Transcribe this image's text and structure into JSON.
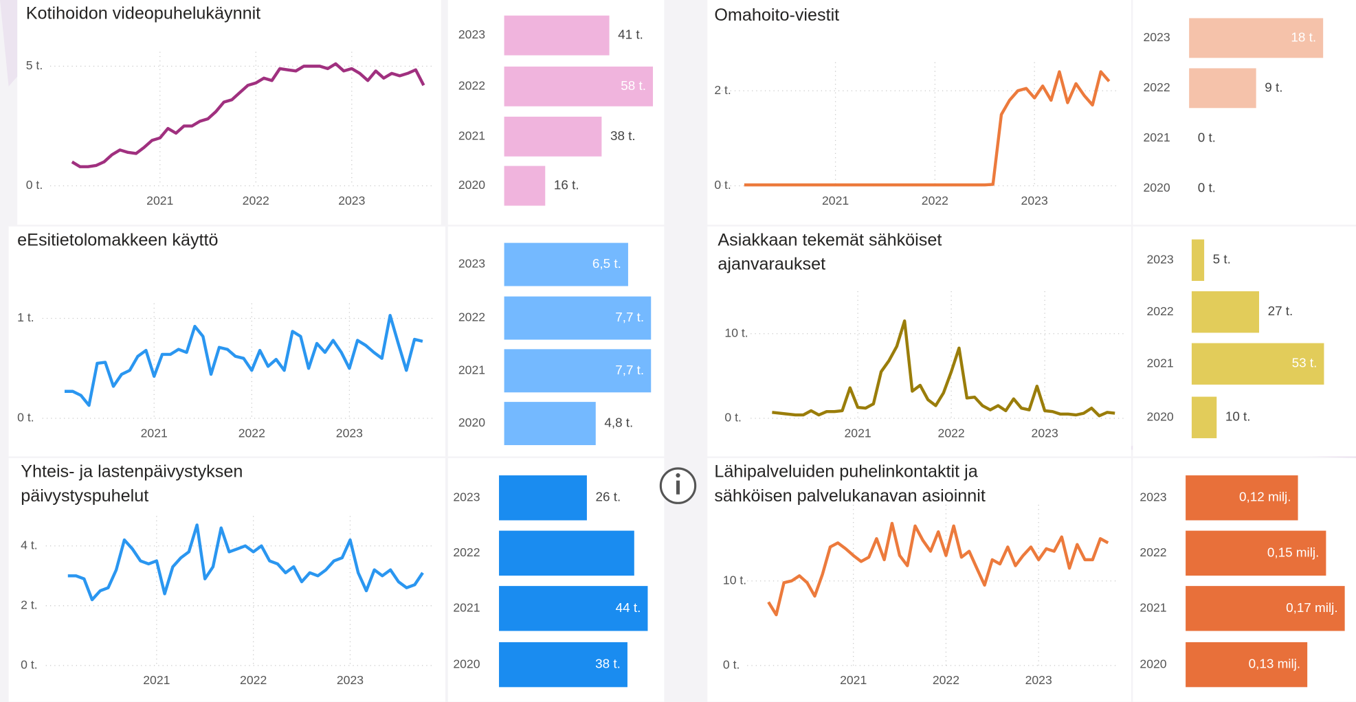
{
  "chart_data": [
    {
      "type": "line",
      "title": "Kotihoidon videopuhelukäynnit",
      "color": "#a0307f",
      "grid": true,
      "x": [
        2020.083,
        2020.167,
        2020.25,
        2020.333,
        2020.417,
        2020.5,
        2020.583,
        2020.667,
        2020.75,
        2020.833,
        2020.917,
        2021,
        2021.083,
        2021.167,
        2021.25,
        2021.333,
        2021.417,
        2021.5,
        2021.583,
        2021.667,
        2021.75,
        2021.833,
        2021.917,
        2022,
        2022.083,
        2022.167,
        2022.25,
        2022.333,
        2022.417,
        2022.5,
        2022.583,
        2022.667,
        2022.75,
        2022.833,
        2022.917,
        2023,
        2023.083,
        2023.167,
        2023.25,
        2023.333,
        2023.417,
        2023.5,
        2023.583,
        2023.667,
        2023.75
      ],
      "values": [
        1.0,
        0.8,
        0.8,
        0.85,
        1.0,
        1.3,
        1.5,
        1.4,
        1.35,
        1.6,
        1.9,
        2.0,
        2.4,
        2.2,
        2.5,
        2.5,
        2.7,
        2.8,
        3.1,
        3.5,
        3.6,
        3.9,
        4.2,
        4.3,
        4.5,
        4.4,
        4.9,
        4.85,
        4.8,
        5.0,
        5.0,
        5.0,
        4.9,
        5.1,
        4.8,
        4.9,
        4.7,
        4.4,
        4.8,
        4.5,
        4.7,
        4.6,
        4.7,
        4.85,
        4.2
      ],
      "xlim": [
        2019.9,
        2023.85
      ],
      "ylim": [
        0,
        5.6
      ],
      "xticks": [
        2021,
        2022,
        2023
      ],
      "yticks": [
        {
          "value": 0,
          "label": "0 t."
        },
        {
          "value": 5,
          "label": "5 t."
        }
      ]
    },
    {
      "type": "bar",
      "orientation": "horizontal",
      "color": "#f0b4dd",
      "categories": [
        "2023",
        "2022",
        "2021",
        "2020"
      ],
      "values": [
        41,
        58,
        38,
        16
      ],
      "value_labels": [
        "41 t.",
        "58 t.",
        "38 t.",
        "16 t."
      ],
      "xlim": [
        0,
        58
      ]
    },
    {
      "type": "line",
      "title": "Omahoito-viestit",
      "color": "#ec7a3c",
      "grid": true,
      "x": [
        2020.083,
        2020.167,
        2020.25,
        2020.333,
        2020.417,
        2020.5,
        2020.583,
        2020.667,
        2020.75,
        2020.833,
        2020.917,
        2021,
        2021.083,
        2021.167,
        2021.25,
        2021.333,
        2021.417,
        2021.5,
        2021.583,
        2021.667,
        2021.75,
        2021.833,
        2021.917,
        2022,
        2022.083,
        2022.167,
        2022.25,
        2022.333,
        2022.417,
        2022.5,
        2022.583,
        2022.667,
        2022.75,
        2022.833,
        2022.917,
        2023,
        2023.083,
        2023.167,
        2023.25,
        2023.333,
        2023.417,
        2023.5,
        2023.583,
        2023.667,
        2023.75
      ],
      "values": [
        0.02,
        0.02,
        0.02,
        0.02,
        0.02,
        0.02,
        0.02,
        0.02,
        0.02,
        0.02,
        0.02,
        0.02,
        0.02,
        0.02,
        0.02,
        0.02,
        0.02,
        0.02,
        0.02,
        0.02,
        0.02,
        0.02,
        0.02,
        0.02,
        0.02,
        0.02,
        0.02,
        0.02,
        0.02,
        0.02,
        0.03,
        1.5,
        1.8,
        2.0,
        2.05,
        1.85,
        2.1,
        1.8,
        2.4,
        1.75,
        2.15,
        1.9,
        1.7,
        2.4,
        2.2
      ],
      "xlim": [
        2019.9,
        2023.85
      ],
      "ylim": [
        0,
        2.6
      ],
      "xticks": [
        2021,
        2022,
        2023
      ],
      "yticks": [
        {
          "value": 0,
          "label": "0 t."
        },
        {
          "value": 2,
          "label": "2 t."
        }
      ]
    },
    {
      "type": "bar",
      "orientation": "horizontal",
      "color": "#f5c2aa",
      "categories": [
        "2023",
        "2022",
        "2021",
        "2020"
      ],
      "values": [
        18,
        9,
        0,
        0
      ],
      "value_labels": [
        "18 t.",
        "9 t.",
        "0 t.",
        "0 t."
      ],
      "xlim": [
        0,
        18
      ]
    },
    {
      "type": "line",
      "title": "eEsitietolomakkeen käyttö",
      "color": "#2a96f0",
      "grid": true,
      "x": [
        2020.083,
        2020.167,
        2020.25,
        2020.333,
        2020.417,
        2020.5,
        2020.583,
        2020.667,
        2020.75,
        2020.833,
        2020.917,
        2021,
        2021.083,
        2021.167,
        2021.25,
        2021.333,
        2021.417,
        2021.5,
        2021.583,
        2021.667,
        2021.75,
        2021.833,
        2021.917,
        2022,
        2022.083,
        2022.167,
        2022.25,
        2022.333,
        2022.417,
        2022.5,
        2022.583,
        2022.667,
        2022.75,
        2022.833,
        2022.917,
        2023,
        2023.083,
        2023.167,
        2023.25,
        2023.333,
        2023.417,
        2023.5,
        2023.583,
        2023.667,
        2023.75
      ],
      "values": [
        0.27,
        0.27,
        0.23,
        0.13,
        0.55,
        0.56,
        0.32,
        0.44,
        0.48,
        0.62,
        0.68,
        0.42,
        0.64,
        0.64,
        0.69,
        0.66,
        0.92,
        0.82,
        0.44,
        0.71,
        0.69,
        0.62,
        0.6,
        0.48,
        0.68,
        0.52,
        0.59,
        0.48,
        0.87,
        0.82,
        0.5,
        0.75,
        0.66,
        0.78,
        0.66,
        0.5,
        0.78,
        0.73,
        0.66,
        0.6,
        1.03,
        0.75,
        0.48,
        0.79,
        0.77
      ],
      "xlim": [
        2019.9,
        2023.85
      ],
      "ylim": [
        0,
        1.15
      ],
      "xticks": [
        2021,
        2022,
        2023
      ],
      "yticks": [
        {
          "value": 0,
          "label": "0 t."
        },
        {
          "value": 1,
          "label": "1 t."
        }
      ]
    },
    {
      "type": "bar",
      "orientation": "horizontal",
      "color": "#74b9ff",
      "categories": [
        "2023",
        "2022",
        "2021",
        "2020"
      ],
      "values": [
        6.5,
        7.7,
        7.7,
        4.8
      ],
      "value_labels": [
        "6,5 t.",
        "7,7 t.",
        "7,7 t.",
        "4,8 t."
      ],
      "xlim": [
        0,
        7.8
      ]
    },
    {
      "type": "line",
      "title": "Asiakkaan tekemät sähköiset ajanvaraukset",
      "color": "#9a7d0a",
      "grid": true,
      "x": [
        2020.083,
        2020.167,
        2020.25,
        2020.333,
        2020.417,
        2020.5,
        2020.583,
        2020.667,
        2020.75,
        2020.833,
        2020.917,
        2021,
        2021.083,
        2021.167,
        2021.25,
        2021.333,
        2021.417,
        2021.5,
        2021.583,
        2021.667,
        2021.75,
        2021.833,
        2021.917,
        2022,
        2022.083,
        2022.167,
        2022.25,
        2022.333,
        2022.417,
        2022.5,
        2022.583,
        2022.667,
        2022.75,
        2022.833,
        2022.917,
        2023,
        2023.083,
        2023.167,
        2023.25,
        2023.333,
        2023.417,
        2023.5,
        2023.583,
        2023.667,
        2023.75
      ],
      "values": [
        0.7,
        0.6,
        0.5,
        0.4,
        0.4,
        0.9,
        0.4,
        0.8,
        0.8,
        0.9,
        3.6,
        1.3,
        1.2,
        1.7,
        5.5,
        6.8,
        8.5,
        11.5,
        3.2,
        3.9,
        2.2,
        1.5,
        3.0,
        5.5,
        8.3,
        2.4,
        2.5,
        1.5,
        1.0,
        1.5,
        0.9,
        2.3,
        1.2,
        1.0,
        3.8,
        0.9,
        0.8,
        0.5,
        0.5,
        0.4,
        0.6,
        1.2,
        0.3,
        0.7,
        0.6
      ],
      "xlim": [
        2019.9,
        2023.85
      ],
      "ylim": [
        0,
        15
      ],
      "xticks": [
        2021,
        2022,
        2023
      ],
      "yticks": [
        {
          "value": 0,
          "label": "0 t."
        },
        {
          "value": 10,
          "label": "10 t."
        }
      ]
    },
    {
      "type": "bar",
      "orientation": "horizontal",
      "color": "#e2cc5a",
      "categories": [
        "2023",
        "2022",
        "2021",
        "2020"
      ],
      "values": [
        5,
        27,
        53,
        10
      ],
      "value_labels": [
        "5 t.",
        "27 t.",
        "53 t.",
        "10 t."
      ],
      "xlim": [
        0,
        53
      ]
    },
    {
      "type": "line",
      "title": "Yhteis- ja lastenpäivystyksen päivystyspuhelut",
      "color": "#2a96f0",
      "grid": true,
      "x": [
        2020.083,
        2020.167,
        2020.25,
        2020.333,
        2020.417,
        2020.5,
        2020.583,
        2020.667,
        2020.75,
        2020.833,
        2020.917,
        2021,
        2021.083,
        2021.167,
        2021.25,
        2021.333,
        2021.417,
        2021.5,
        2021.583,
        2021.667,
        2021.75,
        2021.833,
        2021.917,
        2022,
        2022.083,
        2022.167,
        2022.25,
        2022.333,
        2022.417,
        2022.5,
        2022.583,
        2022.667,
        2022.75,
        2022.833,
        2022.917,
        2023,
        2023.083,
        2023.167,
        2023.25,
        2023.333,
        2023.417,
        2023.5,
        2023.583,
        2023.667,
        2023.75
      ],
      "values": [
        3.0,
        3.0,
        2.9,
        2.2,
        2.5,
        2.6,
        3.2,
        4.2,
        3.9,
        3.5,
        3.4,
        3.5,
        2.4,
        3.3,
        3.6,
        3.8,
        4.7,
        2.9,
        3.3,
        4.6,
        3.8,
        3.9,
        4.0,
        3.8,
        4.0,
        3.5,
        3.4,
        3.1,
        3.3,
        2.8,
        3.1,
        3.0,
        3.2,
        3.5,
        3.6,
        4.2,
        3.1,
        2.5,
        3.2,
        3.0,
        3.2,
        2.8,
        2.6,
        2.7,
        3.1
      ],
      "xlim": [
        2019.9,
        2023.85
      ],
      "ylim": [
        0,
        5
      ],
      "xticks": [
        2021,
        2022,
        2023
      ],
      "yticks": [
        {
          "value": 0,
          "label": "0 t."
        },
        {
          "value": 2,
          "label": "2 t."
        },
        {
          "value": 4,
          "label": "4 t."
        }
      ]
    },
    {
      "type": "bar",
      "orientation": "horizontal",
      "color": "#1a8cf0",
      "categories": [
        "2023",
        "2022",
        "2021",
        "2020"
      ],
      "values": [
        26,
        40,
        44,
        38
      ],
      "value_labels": [
        "26 t.",
        null,
        "44 t.",
        "38 t."
      ],
      "xlim": [
        0,
        44
      ]
    },
    {
      "type": "line",
      "title": "Lähipalveluiden puhelinkontaktit ja sähköisen palvelukanavan asioinnit",
      "color": "#ec7a3c",
      "grid": true,
      "x": [
        2020.083,
        2020.167,
        2020.25,
        2020.333,
        2020.417,
        2020.5,
        2020.583,
        2020.667,
        2020.75,
        2020.833,
        2020.917,
        2021,
        2021.083,
        2021.167,
        2021.25,
        2021.333,
        2021.417,
        2021.5,
        2021.583,
        2021.667,
        2021.75,
        2021.833,
        2021.917,
        2022,
        2022.083,
        2022.167,
        2022.25,
        2022.333,
        2022.417,
        2022.5,
        2022.583,
        2022.667,
        2022.75,
        2022.833,
        2022.917,
        2023,
        2023.083,
        2023.167,
        2023.25,
        2023.333,
        2023.417,
        2023.5,
        2023.583,
        2023.667,
        2023.75
      ],
      "values": [
        7.5,
        6.0,
        9.8,
        10.0,
        10.6,
        9.8,
        8.2,
        10.8,
        14.0,
        14.5,
        13.8,
        13.0,
        12.3,
        12.8,
        15.0,
        12.5,
        16.8,
        13.0,
        11.8,
        16.5,
        14.8,
        13.5,
        15.8,
        13.0,
        16.5,
        12.8,
        13.5,
        11.5,
        9.5,
        12.5,
        12.0,
        14.0,
        11.8,
        13.0,
        14.0,
        12.5,
        13.8,
        13.5,
        15.2,
        11.5,
        14.3,
        12.5,
        12.5,
        15.0,
        14.5
      ],
      "xlim": [
        2019.9,
        2023.85
      ],
      "ylim": [
        0,
        19
      ],
      "xticks": [
        2021,
        2022,
        2023
      ],
      "yticks": [
        {
          "value": 0,
          "label": "0 t."
        },
        {
          "value": 10,
          "label": "10 t."
        }
      ]
    },
    {
      "type": "bar",
      "orientation": "horizontal",
      "color": "#e8703a",
      "categories": [
        "2023",
        "2022",
        "2021",
        "2020"
      ],
      "values": [
        0.12,
        0.15,
        0.17,
        0.13
      ],
      "value_labels": [
        "0,12 milj.",
        "0,15 milj.",
        "0,17 milj.",
        "0,13 milj."
      ],
      "xlim": [
        0,
        0.17
      ]
    }
  ]
}
